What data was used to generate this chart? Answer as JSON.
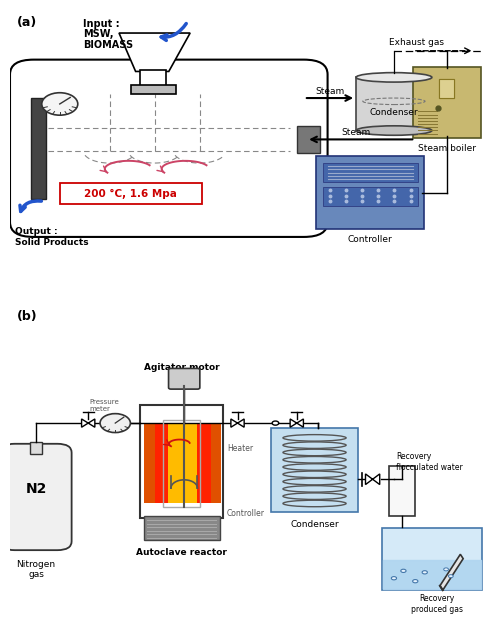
{
  "bg_color": "#ffffff",
  "panel_a_label": "(a)",
  "panel_b_label": "(b)",
  "blue_arrow": "#2255cc",
  "pink_arrow": "#cc4466",
  "red_text": "#cc0000",
  "temp_label": "200 °C, 1.6 Mpa",
  "input_label_1": "Input :",
  "input_label_2": "MSW,",
  "input_label_3": "BIOMASS",
  "output_label_1": "Output :",
  "output_label_2": "Solid Products",
  "steam_label1": "Steam",
  "steam_label2": "Steam",
  "exhaust_label": "Exhaust gas",
  "condenser_label_a": "Condenser",
  "boiler_label": "Steam boiler",
  "controller_label_a": "Controller",
  "n2_label": "N2",
  "nitrogen_label": "Nitrogen\ngas",
  "agitator_label": "Agitator motor",
  "pressure_label": "Pressure\nmeter",
  "heater_label": "Heater",
  "controller_label_b": "Controller",
  "autoclave_label": "Autoclave reactor",
  "condenser_label_b": "Condenser",
  "recovery_water_label": "Recovery\nflocculated water",
  "recovery_gas_label": "Recovery\nproduced gas"
}
